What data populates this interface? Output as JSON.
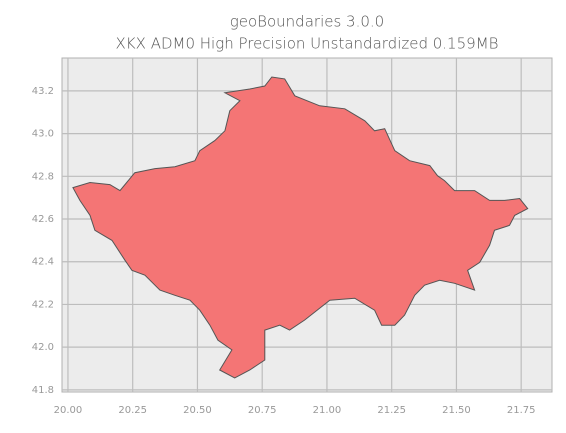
{
  "chart_data": {
    "type": "map",
    "title": "geoBoundaries 3.0.0",
    "subtitle": "XKX ADM0 High Precision Unstandardized 0.159MB",
    "xlim": [
      19.977,
      21.869
    ],
    "ylim": [
      41.79,
      43.354
    ],
    "xticks": [
      {
        "value": 20.0,
        "label": "20.00"
      },
      20.25,
      {
        "value": 20.5,
        "label": "20.50"
      },
      20.75,
      {
        "value": 21.0,
        "label": "21.00"
      },
      21.25,
      {
        "value": 21.5,
        "label": "21.50"
      },
      21.75
    ],
    "yticks": [
      41.8,
      {
        "value": 42.0,
        "label": "42.0"
      },
      42.2,
      42.4,
      42.6,
      42.8,
      {
        "value": 43.0,
        "label": "43.0"
      },
      43.2
    ],
    "grid": true,
    "color": "#f47575",
    "boundary": {
      "x": [
        20.019,
        20.085,
        20.162,
        20.201,
        20.258,
        20.336,
        20.413,
        20.49,
        20.509,
        20.567,
        20.606,
        20.625,
        20.664,
        20.606,
        20.702,
        20.76,
        20.787,
        20.837,
        20.876,
        20.972,
        21.069,
        21.146,
        21.184,
        21.223,
        21.262,
        21.319,
        21.397,
        21.427,
        21.454,
        21.493,
        21.57,
        21.628,
        21.686,
        21.744,
        21.775,
        21.725,
        21.705,
        21.647,
        21.628,
        21.59,
        21.543,
        21.57,
        21.493,
        21.435,
        21.377,
        21.339,
        21.3,
        21.262,
        21.211,
        21.184,
        21.107,
        21.011,
        20.914,
        20.856,
        20.818,
        20.76,
        20.76,
        20.702,
        20.644,
        20.586,
        20.633,
        20.579,
        20.548,
        20.509,
        20.471,
        20.413,
        20.355,
        20.297,
        20.247,
        20.22,
        20.17,
        20.104,
        20.085,
        20.046
      ],
      "y": [
        42.747,
        42.771,
        42.761,
        42.733,
        42.817,
        42.836,
        42.845,
        42.873,
        42.92,
        42.967,
        43.013,
        43.107,
        43.154,
        43.191,
        43.209,
        43.223,
        43.265,
        43.256,
        43.177,
        43.13,
        43.116,
        43.06,
        43.013,
        43.023,
        42.92,
        42.873,
        42.85,
        42.803,
        42.78,
        42.733,
        42.733,
        42.687,
        42.687,
        42.696,
        42.649,
        42.617,
        42.57,
        42.547,
        42.477,
        42.397,
        42.36,
        42.267,
        42.299,
        42.313,
        42.29,
        42.243,
        42.15,
        42.103,
        42.103,
        42.173,
        42.229,
        42.22,
        42.127,
        42.08,
        42.103,
        42.08,
        41.94,
        41.893,
        41.856,
        41.893,
        41.987,
        42.033,
        42.103,
        42.173,
        42.22,
        42.243,
        42.267,
        42.337,
        42.36,
        42.407,
        42.5,
        42.547,
        42.617,
        42.687
      ]
    }
  }
}
